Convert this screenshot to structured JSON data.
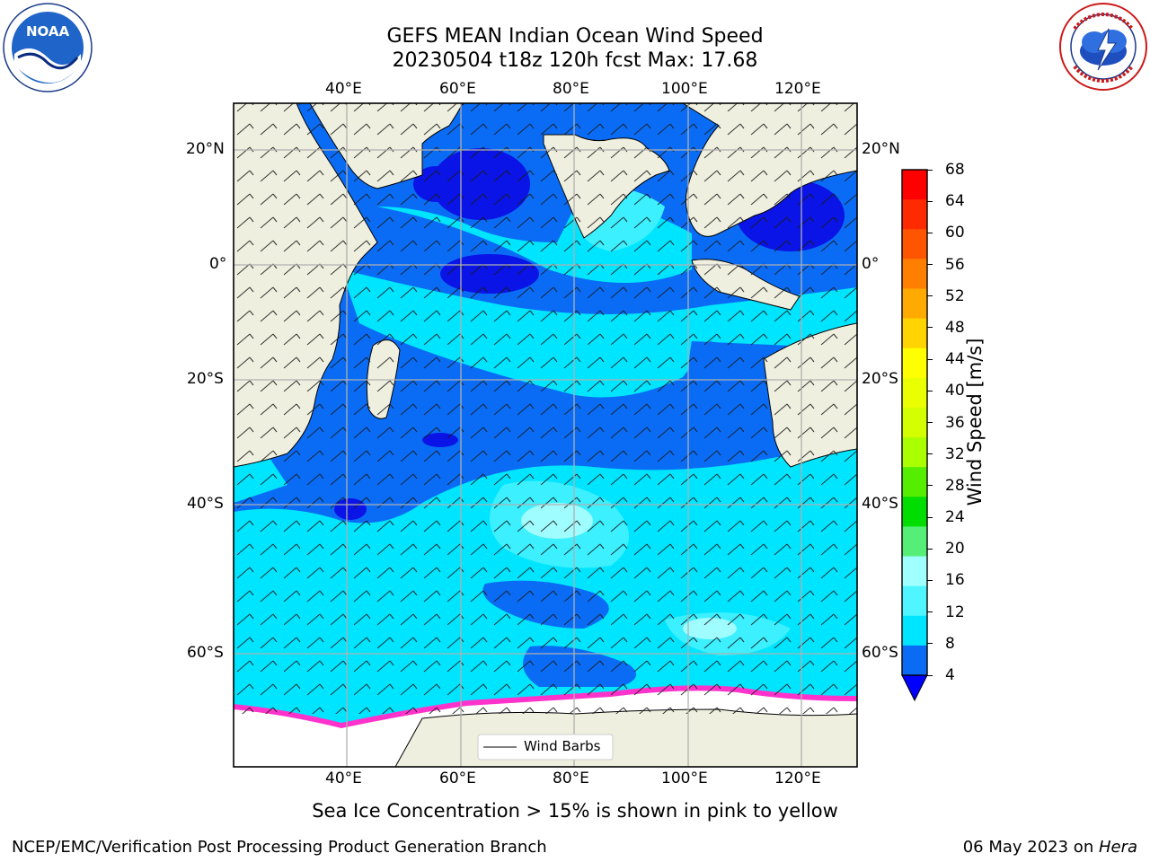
{
  "header": {
    "title_line1": "GEFS MEAN Indian Ocean Wind Speed",
    "title_line2": "20230504 t18z 120h fcst   Max: 17.68"
  },
  "logos": {
    "left": {
      "name": "NOAA",
      "text": "NOAA",
      "ring_text": "NATIONAL OCEANIC AND ATMOSPHERIC ADMINISTRATION · U.S. DEPARTMENT OF COMMERCE"
    },
    "right": {
      "name": "National Weather Service",
      "ring_text": "NATIONAL WEATHER SERVICE"
    }
  },
  "map": {
    "lon_ticks": [
      "40°E",
      "60°E",
      "80°E",
      "100°E",
      "120°E"
    ],
    "lat_ticks": [
      "20°N",
      "0°",
      "20°S",
      "40°S",
      "60°S"
    ],
    "legend_label": "Wind Barbs",
    "colors": {
      "land": "#efefdf",
      "ocean_4_8": "#0a6cf5",
      "ocean_lt4": "#0a14e6",
      "ocean_8_12": "#00e5ff",
      "ocean_12_16": "#3cf0ff",
      "ocean_16_20": "#9ffcff",
      "ice": "#ff33cc",
      "grid": "#b0b0b0"
    }
  },
  "colorbar": {
    "label": "Wind Speed [m/s]",
    "ticks": [
      "68",
      "64",
      "60",
      "56",
      "52",
      "48",
      "44",
      "40",
      "36",
      "32",
      "28",
      "24",
      "20",
      "16",
      "12",
      "8",
      "4"
    ],
    "colors": [
      "#ff0000",
      "#ff2a00",
      "#ff5500",
      "#ff7f00",
      "#ffaa00",
      "#ffd400",
      "#ffff00",
      "#eaff00",
      "#d4ff00",
      "#aaff00",
      "#55ee00",
      "#00dd00",
      "#55ee77",
      "#a0ffff",
      "#50f6ff",
      "#00e5ff",
      "#0a6cf5"
    ],
    "under_color": "#0000ff"
  },
  "caption": "Sea Ice Concentration > 15% is shown in pink to yellow",
  "footer": {
    "left": "NCEP/EMC/Verification Post Processing Product Generation Branch",
    "right_date": "06 May 2023 on ",
    "right_host": "Hera"
  }
}
